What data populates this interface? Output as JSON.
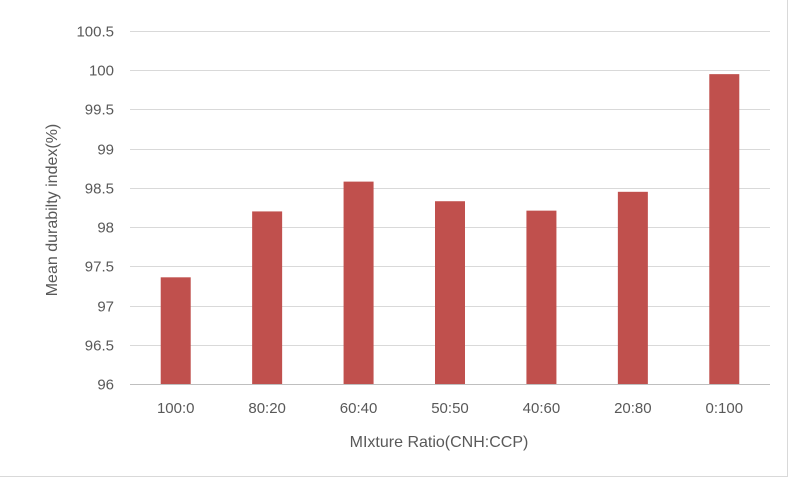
{
  "chart_data": {
    "type": "bar",
    "title": "",
    "xlabel": "MIxture Ratio(CNH:CCP)",
    "ylabel": "Mean durabilty index(%)",
    "categories": [
      "100:0",
      "80:20",
      "60:40",
      "50:50",
      "40:60",
      "20:80",
      "0:100"
    ],
    "values": [
      97.36,
      98.2,
      98.58,
      98.33,
      98.21,
      98.45,
      99.95
    ],
    "ylim": [
      96,
      100.5
    ],
    "yticks": [
      96,
      96.5,
      97,
      97.5,
      98,
      98.5,
      99,
      99.5,
      100,
      100.5
    ],
    "ytick_labels": [
      "96",
      "96.5",
      "97",
      "97.5",
      "98",
      "98.5",
      "99",
      "99.5",
      "100",
      "100.5"
    ],
    "grid": true,
    "legend": "none",
    "bar_color": "#c0504d",
    "grid_color": "#d9d9d9",
    "text_color": "#595959"
  }
}
